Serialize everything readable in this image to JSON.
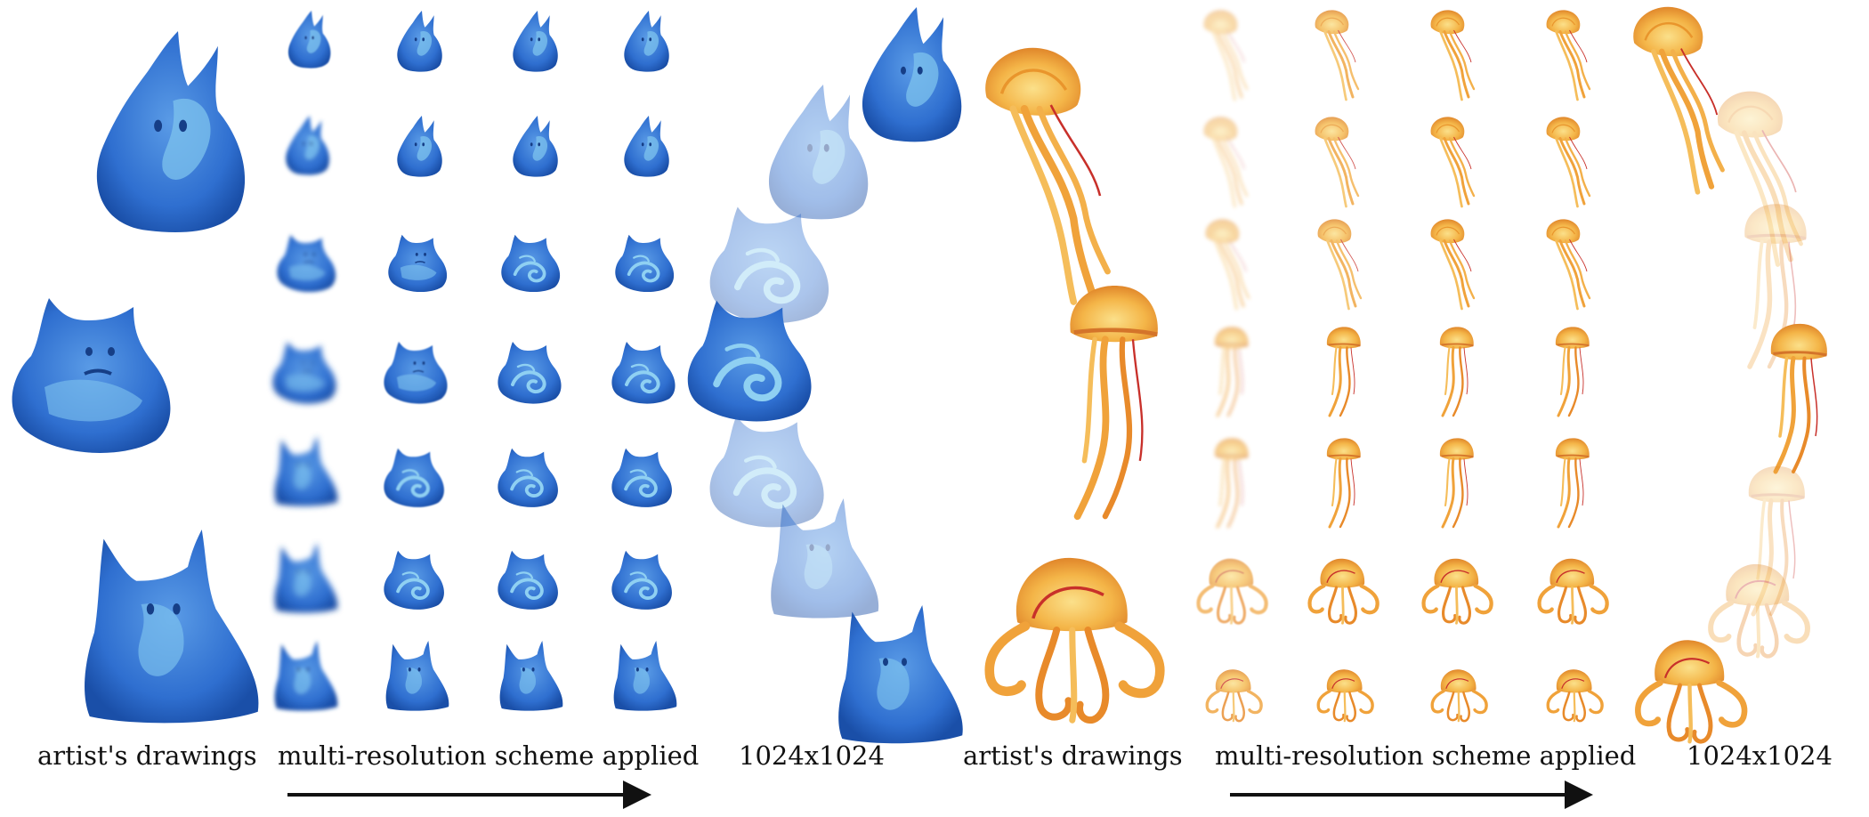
{
  "left_panel": {
    "subject": "blue blob creature",
    "caption_drawings": "artist's drawings",
    "caption_scheme": "multi-resolution scheme applied",
    "caption_result": "1024x1024",
    "colors": {
      "body": "#2f6fd0",
      "highlight": "#7ec3ee",
      "pale": "#b7cff2",
      "outline": "#1a4fa8"
    }
  },
  "right_panel": {
    "subject": "orange jellyfish",
    "caption_drawings": "artist's drawings",
    "caption_scheme": "multi-resolution scheme applied",
    "caption_result": "1024x1024",
    "colors": {
      "bell": "#f2a83a",
      "inner": "#f8d270",
      "tentacle": "#e88a2a",
      "vein": "#c8302a"
    }
  },
  "arrow_color": "#111111"
}
